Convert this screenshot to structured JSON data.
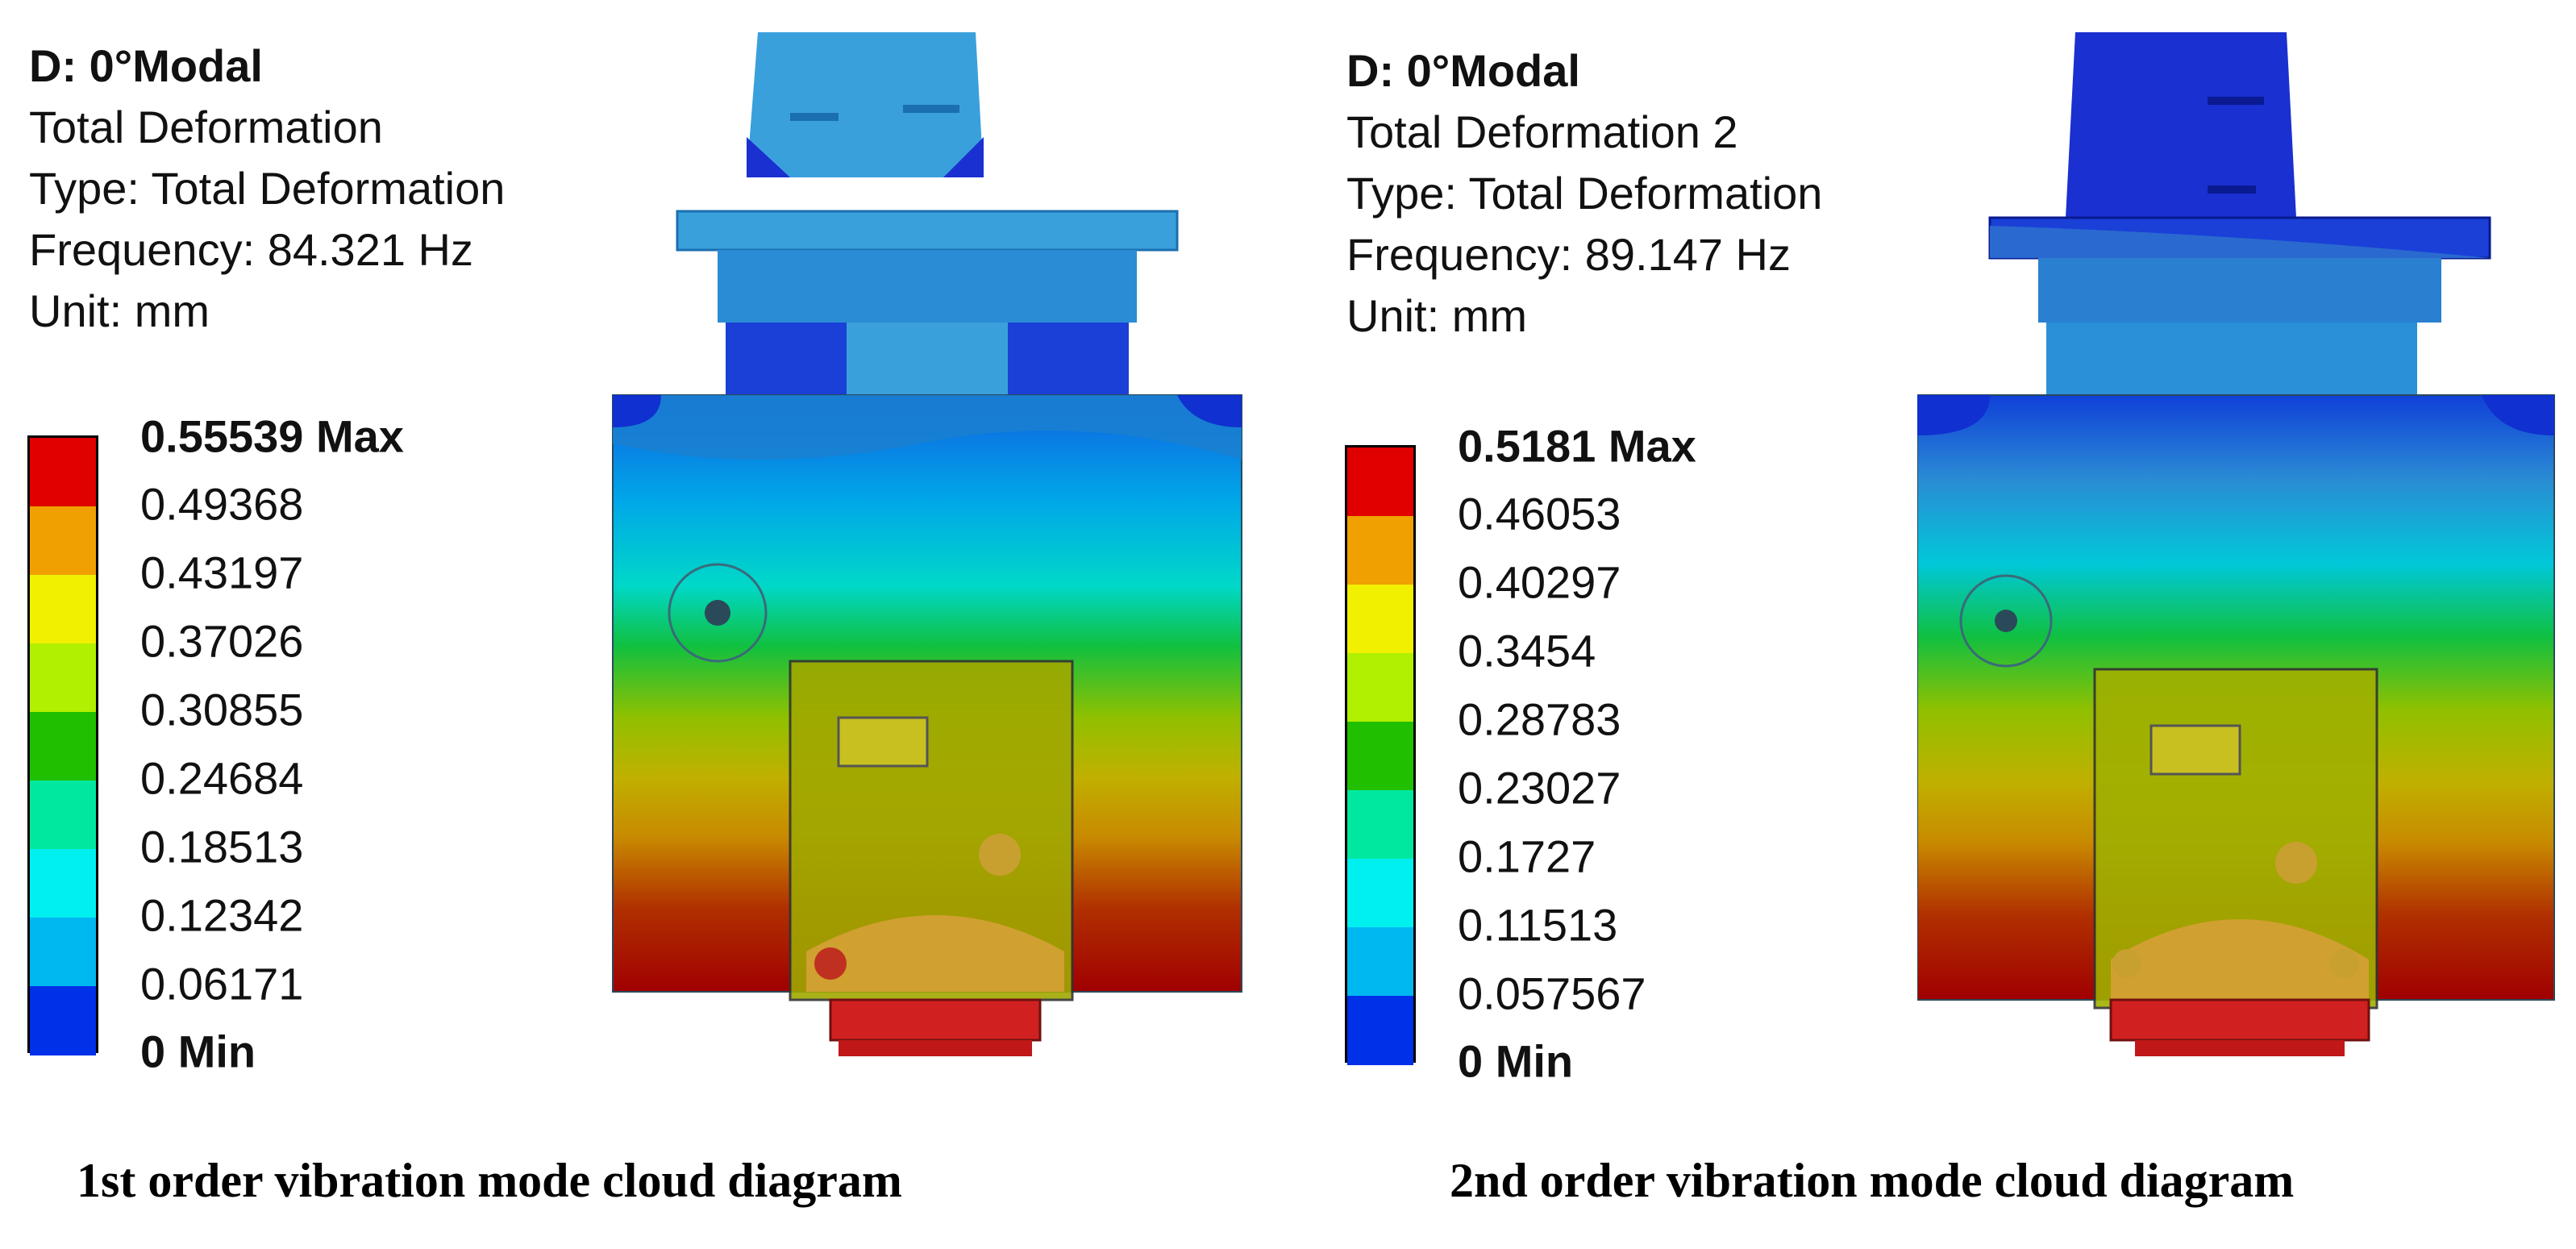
{
  "panels": [
    {
      "info": {
        "title": "D: 0°Modal",
        "name": "Total Deformation",
        "type": "Type: Total Deformation",
        "frequency": "Frequency: 84.321 Hz",
        "unit": "Unit: mm"
      },
      "legend": [
        "0.55539 Max",
        "0.49368",
        "0.43197",
        "0.37026",
        "0.30855",
        "0.24684",
        "0.18513",
        "0.12342",
        "0.06171",
        "0 Min"
      ],
      "caption": "1st order vibration mode cloud diagram"
    },
    {
      "info": {
        "title": "D: 0°Modal",
        "name": "Total Deformation 2",
        "type": "Type: Total Deformation",
        "frequency": "Frequency: 89.147 Hz",
        "unit": "Unit: mm"
      },
      "legend": [
        "0.5181 Max",
        "0.46053",
        "0.40297",
        "0.3454",
        "0.28783",
        "0.23027",
        "0.1727",
        "0.11513",
        "0.057567",
        "0 Min"
      ],
      "caption": "2nd order vibration mode cloud diagram"
    }
  ],
  "colors": {
    "scale": [
      "#e00000",
      "#f0a000",
      "#f0f000",
      "#b0f000",
      "#20c000",
      "#00e8a0",
      "#00f0f0",
      "#00b8f0",
      "#0030e8"
    ]
  }
}
